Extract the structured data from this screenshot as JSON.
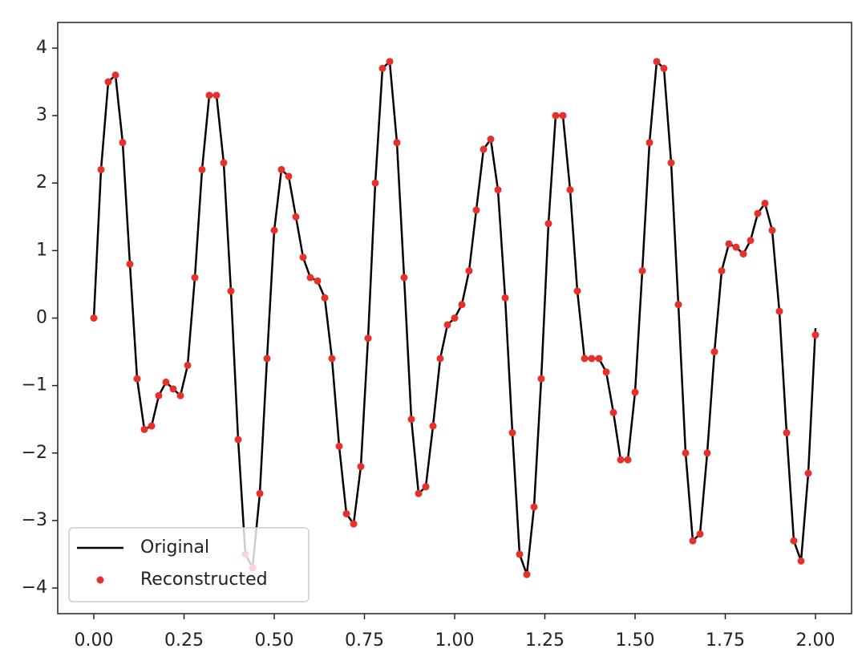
{
  "chart_data": {
    "type": "line",
    "x": [
      0,
      0.02,
      0.04,
      0.06,
      0.08,
      0.1,
      0.12,
      0.14,
      0.16,
      0.18,
      0.2,
      0.22,
      0.24,
      0.26,
      0.28,
      0.3,
      0.32,
      0.34,
      0.36,
      0.38,
      0.4,
      0.42,
      0.44,
      0.46,
      0.48,
      0.5,
      0.52,
      0.54,
      0.56,
      0.58,
      0.6,
      0.62,
      0.64,
      0.66,
      0.68,
      0.7,
      0.72,
      0.74,
      0.76,
      0.78,
      0.8,
      0.82,
      0.84,
      0.86,
      0.88,
      0.9,
      0.92,
      0.94,
      0.96,
      0.98,
      1.0,
      1.02,
      1.04,
      1.06,
      1.08,
      1.1,
      1.12,
      1.14,
      1.16,
      1.18,
      1.2,
      1.22,
      1.24,
      1.26,
      1.28,
      1.3,
      1.32,
      1.34,
      1.36,
      1.38,
      1.4,
      1.42,
      1.44,
      1.46,
      1.48,
      1.5,
      1.52,
      1.54,
      1.56,
      1.58,
      1.6,
      1.62,
      1.64,
      1.66,
      1.68,
      1.7,
      1.72,
      1.74,
      1.76,
      1.78,
      1.8,
      1.82,
      1.84,
      1.86,
      1.88,
      1.9,
      1.92,
      1.94,
      1.96,
      1.98,
      2.0
    ],
    "series": [
      {
        "name": "Original",
        "color": "#000000",
        "style": "line",
        "values": [
          0,
          2.2,
          3.5,
          3.6,
          2.6,
          0.8,
          -0.9,
          -1.65,
          -1.6,
          -1.15,
          -0.95,
          -1.05,
          -1.15,
          -0.7,
          0.6,
          2.2,
          3.3,
          3.3,
          2.3,
          0.4,
          -1.8,
          -3.5,
          -3.7,
          -2.6,
          -0.6,
          1.3,
          2.2,
          2.1,
          1.5,
          0.9,
          0.6,
          0.55,
          0.3,
          -0.6,
          -1.9,
          -2.9,
          -3.05,
          -2.2,
          -0.3,
          2.0,
          3.7,
          3.8,
          2.6,
          0.6,
          -1.5,
          -2.6,
          -2.5,
          -1.6,
          -0.6,
          -0.1,
          0.0,
          0.2,
          0.7,
          1.6,
          2.5,
          2.65,
          1.9,
          0.3,
          -1.7,
          -3.5,
          -3.8,
          -2.8,
          -0.9,
          1.4,
          3.0,
          3.0,
          1.9,
          0.4,
          -0.6,
          -0.6,
          -0.6,
          -0.8,
          -1.4,
          -2.1,
          -2.1,
          -1.1,
          0.7,
          2.6,
          3.8,
          3.7,
          2.3,
          0.2,
          -2.0,
          -3.3,
          -3.2,
          -2.0,
          -0.5,
          0.7,
          1.1,
          1.05,
          0.95,
          1.15,
          1.55,
          1.7,
          1.3,
          0.1,
          -1.7,
          -3.3,
          -3.6,
          -2.3,
          -0.15
        ]
      },
      {
        "name": "Reconstructed",
        "color": "#e8302a",
        "style": "dots",
        "values": [
          0,
          2.2,
          3.5,
          3.6,
          2.6,
          0.8,
          -0.9,
          -1.65,
          -1.6,
          -1.15,
          -0.95,
          -1.05,
          -1.15,
          -0.7,
          0.6,
          2.2,
          3.3,
          3.3,
          2.3,
          0.4,
          -1.8,
          -3.5,
          -3.7,
          -2.6,
          -0.6,
          1.3,
          2.2,
          2.1,
          1.5,
          0.9,
          0.6,
          0.55,
          0.3,
          -0.6,
          -1.9,
          -2.9,
          -3.05,
          -2.2,
          -0.3,
          2.0,
          3.7,
          3.8,
          2.6,
          0.6,
          -1.5,
          -2.6,
          -2.5,
          -1.6,
          -0.6,
          -0.1,
          0.0,
          0.2,
          0.7,
          1.6,
          2.5,
          2.65,
          1.9,
          0.3,
          -1.7,
          -3.5,
          -3.8,
          -2.8,
          -0.9,
          1.4,
          3.0,
          3.0,
          1.9,
          0.4,
          -0.6,
          -0.6,
          -0.6,
          -0.8,
          -1.4,
          -2.1,
          -2.1,
          -1.1,
          0.7,
          2.6,
          3.8,
          3.7,
          2.3,
          0.2,
          -2.0,
          -3.3,
          -3.2,
          -2.0,
          -0.5,
          0.7,
          1.1,
          1.05,
          0.95,
          1.15,
          1.55,
          1.7,
          1.3,
          0.1,
          -1.7,
          -3.3,
          -3.6,
          -2.3,
          -0.25
        ]
      }
    ],
    "xlim": [
      -0.1,
      2.1
    ],
    "ylim": [
      -4.38,
      4.38
    ],
    "xticks": [
      {
        "value": 0,
        "label": "0.00"
      },
      {
        "value": 0.25,
        "label": "0.25"
      },
      {
        "value": 0.5,
        "label": "0.50"
      },
      {
        "value": 0.75,
        "label": "0.75"
      },
      {
        "value": 1,
        "label": "1.00"
      },
      {
        "value": 1.25,
        "label": "1.25"
      },
      {
        "value": 1.5,
        "label": "1.50"
      },
      {
        "value": 1.75,
        "label": "1.75"
      },
      {
        "value": 2,
        "label": "2.00"
      }
    ],
    "yticks": [
      {
        "value": -4,
        "label": "−4"
      },
      {
        "value": -3,
        "label": "−3"
      },
      {
        "value": -2,
        "label": "−2"
      },
      {
        "value": -1,
        "label": "−1"
      },
      0,
      1,
      2,
      3,
      4
    ],
    "legend": "lower left",
    "grid": false
  }
}
